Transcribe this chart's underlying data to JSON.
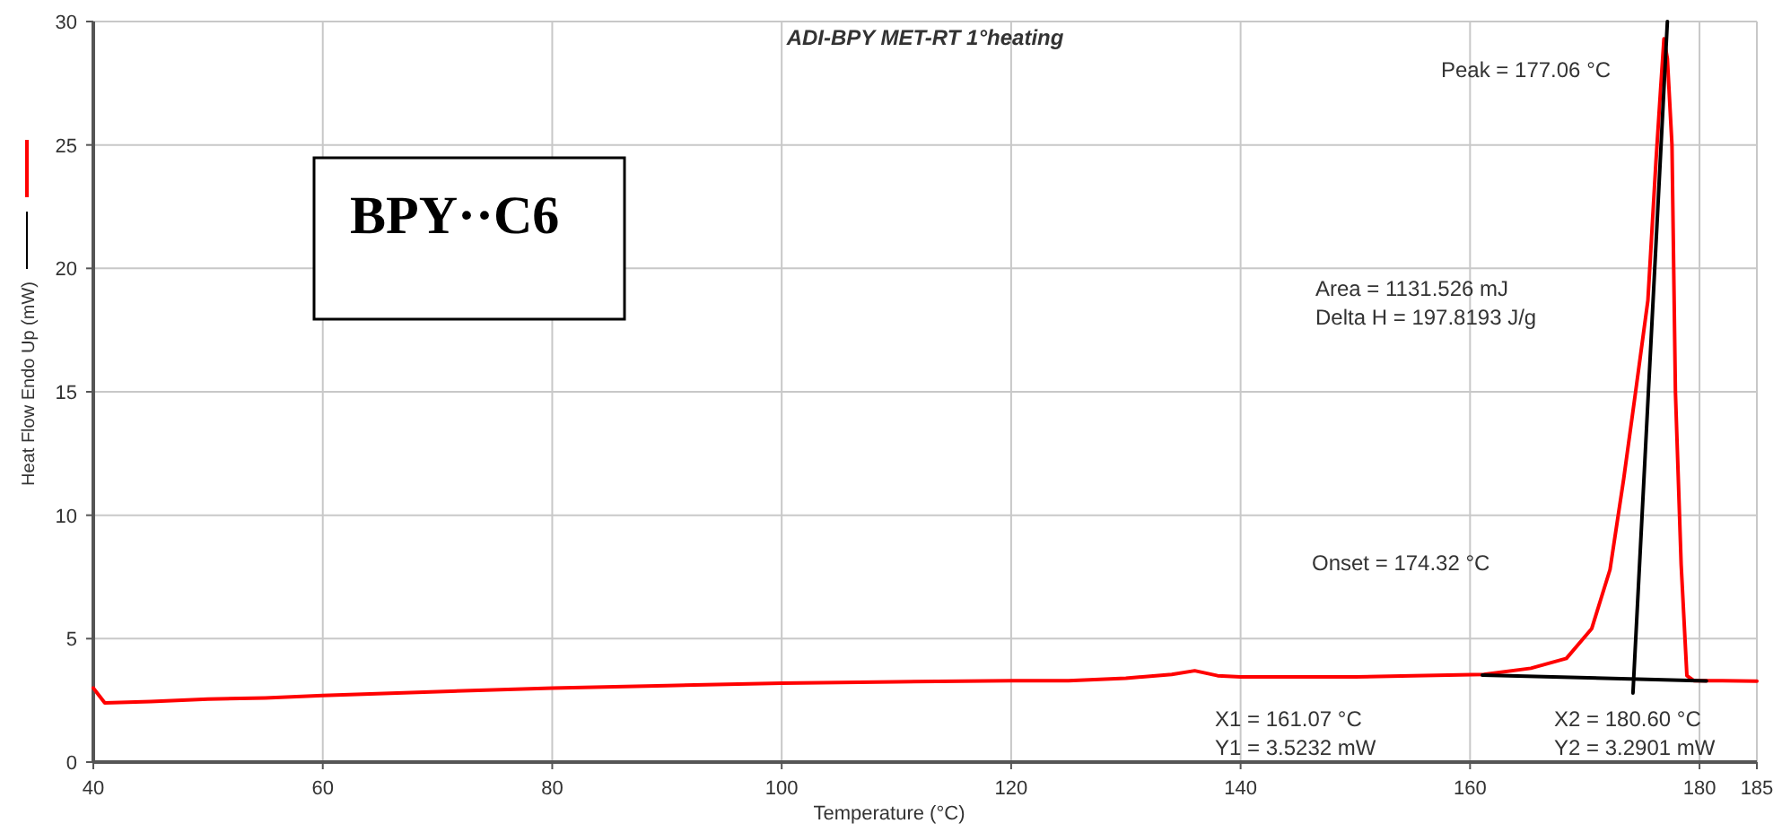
{
  "chart_data": {
    "type": "line",
    "title": "ADI-BPY MET-RT 1°heating",
    "xlabel": "Temperature (°C)",
    "ylabel": "Heat Flow Endo Up (mW)",
    "xlim": [
      40,
      185
    ],
    "xticks": [
      40,
      60,
      80,
      100,
      120,
      140,
      160,
      180,
      185
    ],
    "ylim": [
      0,
      30
    ],
    "yticks": [
      0,
      5,
      10,
      15,
      20,
      25,
      30
    ],
    "grid": true,
    "marker": "none",
    "line_style": "solid",
    "series": [
      {
        "color": "#ff0000",
        "x": [
          40,
          40.5,
          41,
          45,
          50,
          55,
          60,
          70,
          80,
          90,
          100,
          110,
          120,
          125,
          130,
          134,
          136,
          138,
          140,
          145,
          150,
          155,
          161.2,
          165.3,
          168.4,
          170.6,
          172.2,
          173.4,
          174.4,
          175.5,
          176.2,
          176.6,
          176.9,
          177.2,
          177.6,
          177.9,
          178.4,
          178.9,
          179.5,
          182,
          185
        ],
        "values": [
          3.0,
          2.7,
          2.4,
          2.45,
          2.55,
          2.6,
          2.7,
          2.85,
          3.0,
          3.1,
          3.2,
          3.25,
          3.3,
          3.3,
          3.4,
          3.55,
          3.7,
          3.5,
          3.45,
          3.45,
          3.45,
          3.5,
          3.55,
          3.8,
          4.2,
          5.4,
          7.8,
          11.5,
          14.9,
          18.7,
          24.3,
          27.2,
          29.3,
          28.5,
          25,
          15,
          8,
          3.5,
          3.3,
          3.3,
          3.28
        ]
      },
      {
        "color": "#000000",
        "x": [
          161.07,
          180.6
        ],
        "values": [
          3.5232,
          3.2901
        ]
      },
      {
        "color": "#000000",
        "x": [
          174.2,
          177.2
        ],
        "values": [
          2.8,
          30
        ]
      }
    ],
    "annotations": [
      "BPY··C6",
      "Peak = 177.06 °C",
      "Area = 1131.526 mJ",
      "Delta H = 197.8193 J/g",
      "Onset = 174.32 °C",
      "X1 = 161.07 °C",
      "Y1 = 3.5232 mW",
      "X2 = 180.60 °C",
      "Y2 = 3.2901 mW"
    ]
  }
}
